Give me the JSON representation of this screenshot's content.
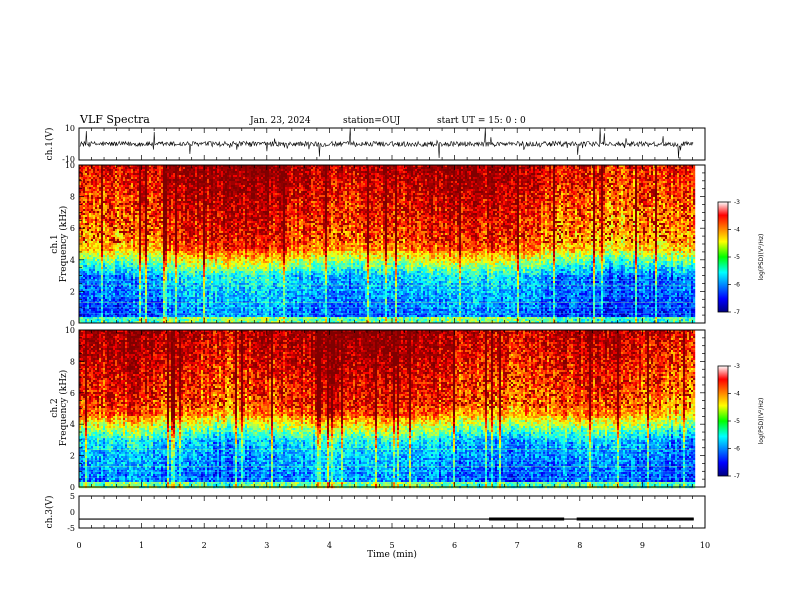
{
  "header": {
    "title": "VLF Spectra",
    "date": "Jan. 23, 2024",
    "station": "station=OUJ",
    "start": "start  UT =   15: 0  : 0"
  },
  "chart_data": [
    {
      "name": "ch1-waveform",
      "type": "line",
      "ylabel": "ch.1(V)",
      "ylim": [
        -10,
        10
      ],
      "yticks": [
        "10",
        "-10"
      ],
      "xlim": [
        0,
        10
      ],
      "trace_end": 9.82,
      "baseline": 0,
      "line_color": "#000000"
    },
    {
      "name": "ch1-spectrogram",
      "type": "heatmap",
      "ylabel": "ch.1\nFrequency (kHz)",
      "ylim": [
        0,
        10
      ],
      "yticks": [
        "0",
        "2",
        "4",
        "6",
        "8",
        "10"
      ],
      "xlim": [
        0,
        10
      ],
      "data_end": 9.82,
      "colorbar": {
        "label": "log(PSD)(V²/Hz)",
        "range": [
          -7,
          -3
        ],
        "ticks": [
          "-3",
          "-4",
          "-5",
          "-6",
          "-7"
        ]
      }
    },
    {
      "name": "ch2-spectrogram",
      "type": "heatmap",
      "ylabel": "ch.2\nFrequency (kHz)",
      "ylim": [
        0,
        10
      ],
      "yticks": [
        "0",
        "2",
        "4",
        "6",
        "8",
        "10"
      ],
      "xlim": [
        0,
        10
      ],
      "data_end": 9.82,
      "colorbar": {
        "label": "log(PSD)(V²/Hz)",
        "range": [
          -7,
          -3
        ],
        "ticks": [
          "-3",
          "-4",
          "-5",
          "-6",
          "-7"
        ]
      }
    },
    {
      "name": "ch3-level",
      "type": "line",
      "ylabel": "ch.3(V)",
      "ylim": [
        -5,
        5
      ],
      "yticks": [
        "5",
        "0",
        "-5"
      ],
      "xlim": [
        0,
        10
      ],
      "xlabel": "Time (min)",
      "xticks": [
        "0",
        "1",
        "2",
        "3",
        "4",
        "5",
        "6",
        "7",
        "8",
        "9",
        "10"
      ],
      "level": -2.2,
      "trace_end": 9.82,
      "thick_segments": [
        [
          6.55,
          7.75
        ],
        [
          7.95,
          9.82
        ]
      ]
    }
  ]
}
